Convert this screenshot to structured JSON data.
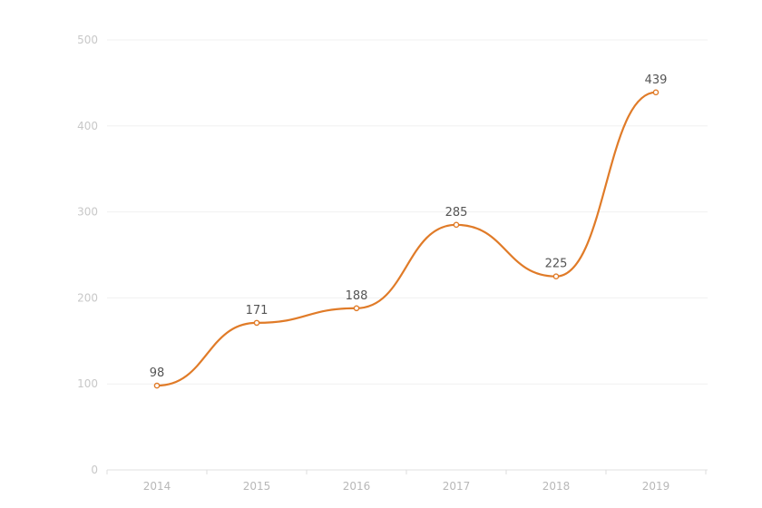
{
  "chart_data": {
    "type": "line",
    "x": [
      "2014",
      "2015",
      "2016",
      "2017",
      "2018",
      "2019"
    ],
    "series": [
      {
        "values": [
          98,
          171,
          188,
          285,
          225,
          439
        ],
        "color": "#e07b28",
        "smooth": true
      }
    ],
    "data_labels": [
      "98",
      "171",
      "188",
      "285",
      "225",
      "439"
    ],
    "ylim": [
      0,
      500
    ],
    "y_ticks": [
      0,
      100,
      200,
      300,
      400,
      500
    ],
    "y_tick_labels": [
      "0",
      "100",
      "200",
      "300",
      "400",
      "500"
    ],
    "x_tick_labels": [
      "2014",
      "2015",
      "2016",
      "2017",
      "2018",
      "2019"
    ],
    "grid": true,
    "legend": "none"
  }
}
